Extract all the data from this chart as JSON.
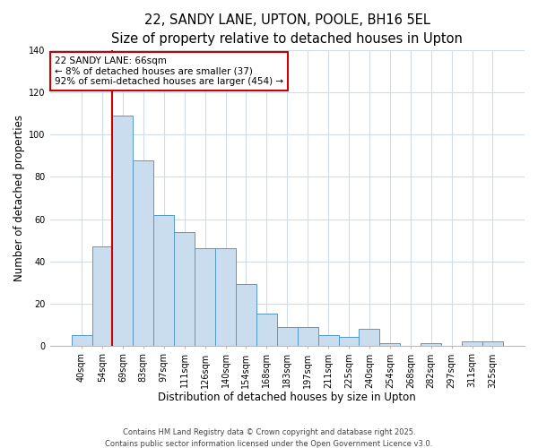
{
  "title": "22, SANDY LANE, UPTON, POOLE, BH16 5EL",
  "subtitle": "Size of property relative to detached houses in Upton",
  "xlabel": "Distribution of detached houses by size in Upton",
  "ylabel": "Number of detached properties",
  "bar_labels": [
    "40sqm",
    "54sqm",
    "69sqm",
    "83sqm",
    "97sqm",
    "111sqm",
    "126sqm",
    "140sqm",
    "154sqm",
    "168sqm",
    "183sqm",
    "197sqm",
    "211sqm",
    "225sqm",
    "240sqm",
    "254sqm",
    "268sqm",
    "282sqm",
    "297sqm",
    "311sqm",
    "325sqm"
  ],
  "bar_values": [
    5,
    47,
    109,
    88,
    62,
    54,
    46,
    46,
    29,
    15,
    9,
    9,
    5,
    4,
    8,
    1,
    0,
    1,
    0,
    2,
    2
  ],
  "bar_color": "#c9ddef",
  "bar_edge_color": "#5599cc",
  "vline_color": "#cc0000",
  "annotation_title": "22 SANDY LANE: 66sqm",
  "annotation_line1": "← 8% of detached houses are smaller (37)",
  "annotation_line2": "92% of semi-detached houses are larger (454) →",
  "annotation_box_color": "#ffffff",
  "annotation_box_edge": "#cc0000",
  "ylim": [
    0,
    140
  ],
  "yticks": [
    0,
    20,
    40,
    60,
    80,
    100,
    120,
    140
  ],
  "bg_color": "#ffffff",
  "grid_color": "#d0dce8",
  "footer1": "Contains HM Land Registry data © Crown copyright and database right 2025.",
  "footer2": "Contains public sector information licensed under the Open Government Licence v3.0.",
  "title_fontsize": 10.5,
  "subtitle_fontsize": 9.5,
  "axis_label_fontsize": 8.5,
  "tick_fontsize": 7,
  "annotation_fontsize": 7.5,
  "footer_fontsize": 6
}
